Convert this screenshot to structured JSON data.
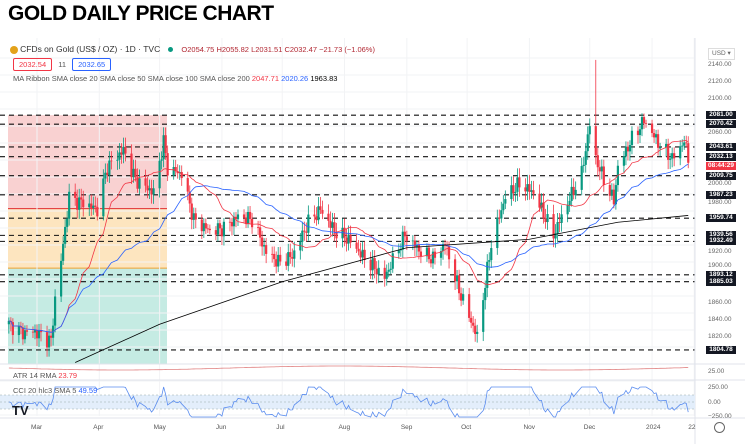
{
  "title": "GOLD DAILY PRICE CHART",
  "legend": {
    "symbol": "CFDs on Gold (US$ / OZ) · 1D · TVC",
    "open": "O2054.75",
    "high": "H2055.82",
    "low": "L2031.51",
    "close": "C2032.47",
    "change": "−21.73 (−1.06%)",
    "bid": "2032.54",
    "spread": "11",
    "ask": "2032.65",
    "ma_label": "MA Ribbon SMA close 20 SMA close 50 SMA close 100 SMA close 200",
    "ma20": "2047.71",
    "ma50": "2020.26",
    "ma200": "1963.83",
    "atr_label": "ATR 14 RMA",
    "atr_value": "23.79",
    "cci_label": "CCI 20 hlc3 SMA 5",
    "cci_value": "49.59"
  },
  "currency": "USD",
  "colors": {
    "up": "#089981",
    "down": "#f23645",
    "ma20": "#f23645",
    "ma50": "#2962ff",
    "ma200": "#000000",
    "red_zone": "#f7c6c6",
    "orange_zone": "#fde5bf",
    "green_zone": "#c5ebe3"
  },
  "price_axis": [
    "2140.00",
    "2120.00",
    "2100.00",
    "2060.00",
    "2000.00",
    "1980.00",
    "1920.00",
    "1900.00",
    "1860.00",
    "1840.00",
    "1820.00"
  ],
  "levels": [
    {
      "price": 2081.0,
      "label": "2081.00"
    },
    {
      "price": 2070.42,
      "label": "2070.42"
    },
    {
      "price": 2043.61,
      "label": "2043.61"
    },
    {
      "price": 2032.13,
      "label": "2032.13"
    },
    {
      "price": 2009.75,
      "label": "2009.75"
    },
    {
      "price": 1987.23,
      "label": "1987.23"
    },
    {
      "price": 1959.74,
      "label": "1959.74"
    },
    {
      "price": 1939.56,
      "label": "1939.56"
    },
    {
      "price": 1932.49,
      "label": "1932.49"
    },
    {
      "price": 1893.12,
      "label": "1893.12"
    },
    {
      "price": 1885.03,
      "label": "1885.03"
    },
    {
      "price": 1804.78,
      "label": "1804.78"
    }
  ],
  "countdown": "08:44:29",
  "atr_axis": "25.00",
  "cci_axis": [
    "250.00",
    "0.00",
    "−250.00"
  ],
  "x_labels": [
    {
      "label": "Mar",
      "date": "2023-03-01"
    },
    {
      "label": "Apr",
      "date": "2023-04-01"
    },
    {
      "label": "May",
      "date": "2023-05-01"
    },
    {
      "label": "Jun",
      "date": "2023-06-01"
    },
    {
      "label": "Jul",
      "date": "2023-07-01"
    },
    {
      "label": "Aug",
      "date": "2023-08-01"
    },
    {
      "label": "Sep",
      "date": "2023-09-01"
    },
    {
      "label": "Oct",
      "date": "2023-10-01"
    },
    {
      "label": "Nov",
      "date": "2023-11-01"
    },
    {
      "label": "Dec",
      "date": "2023-12-01"
    },
    {
      "label": "2024",
      "date": "2024-01-01"
    },
    {
      "label": "22",
      "date": "2024-01-22"
    }
  ],
  "chart_data": {
    "type": "candlestick",
    "ylim": [
      1795,
      2150
    ],
    "close_path": [
      [
        "2023-02-15",
        1835
      ],
      [
        "2023-02-22",
        1825
      ],
      [
        "2023-02-28",
        1826
      ],
      [
        "2023-03-08",
        1815
      ],
      [
        "2023-03-10",
        1865
      ],
      [
        "2023-03-13",
        1910
      ],
      [
        "2023-03-17",
        1985
      ],
      [
        "2023-03-20",
        1980
      ],
      [
        "2023-03-24",
        1978
      ],
      [
        "2023-03-31",
        1970
      ],
      [
        "2023-04-05",
        2020
      ],
      [
        "2023-04-13",
        2040
      ],
      [
        "2023-04-19",
        2005
      ],
      [
        "2023-04-28",
        1990
      ],
      [
        "2023-05-03",
        2050
      ],
      [
        "2023-05-05",
        2018
      ],
      [
        "2023-05-12",
        2012
      ],
      [
        "2023-05-18",
        1958
      ],
      [
        "2023-05-26",
        1945
      ],
      [
        "2023-06-02",
        1948
      ],
      [
        "2023-06-09",
        1962
      ],
      [
        "2023-06-16",
        1958
      ],
      [
        "2023-06-23",
        1920
      ],
      [
        "2023-06-29",
        1908
      ],
      [
        "2023-07-06",
        1915
      ],
      [
        "2023-07-14",
        1955
      ],
      [
        "2023-07-20",
        1970
      ],
      [
        "2023-07-27",
        1945
      ],
      [
        "2023-08-03",
        1935
      ],
      [
        "2023-08-10",
        1915
      ],
      [
        "2023-08-21",
        1890
      ],
      [
        "2023-08-31",
        1940
      ],
      [
        "2023-09-08",
        1920
      ],
      [
        "2023-09-14",
        1912
      ],
      [
        "2023-09-20",
        1930
      ],
      [
        "2023-09-27",
        1875
      ],
      [
        "2023-10-06",
        1820
      ],
      [
        "2023-10-13",
        1930
      ],
      [
        "2023-10-20",
        1985
      ],
      [
        "2023-10-27",
        2000
      ],
      [
        "2023-11-03",
        1990
      ],
      [
        "2023-11-13",
        1940
      ],
      [
        "2023-11-20",
        1978
      ],
      [
        "2023-11-27",
        2012
      ],
      [
        "2023-12-01",
        2070
      ],
      [
        "2023-12-04",
        2030
      ],
      [
        "2023-12-08",
        2005
      ],
      [
        "2023-12-13",
        1980
      ],
      [
        "2023-12-15",
        2020
      ],
      [
        "2023-12-22",
        2053
      ],
      [
        "2023-12-28",
        2075
      ],
      [
        "2024-01-05",
        2045
      ],
      [
        "2024-01-11",
        2030
      ],
      [
        "2024-01-17",
        2050
      ],
      [
        "2024-01-19",
        2032
      ]
    ],
    "spike_high": {
      "date": "2023-12-04",
      "high": 2146
    },
    "sma200_path": [
      [
        "2023-03-20",
        1790
      ],
      [
        "2023-05-01",
        1835
      ],
      [
        "2023-07-01",
        1885
      ],
      [
        "2023-09-01",
        1925
      ],
      [
        "2023-11-01",
        1935
      ],
      [
        "2023-12-15",
        1955
      ],
      [
        "2024-01-19",
        1963
      ]
    ]
  }
}
